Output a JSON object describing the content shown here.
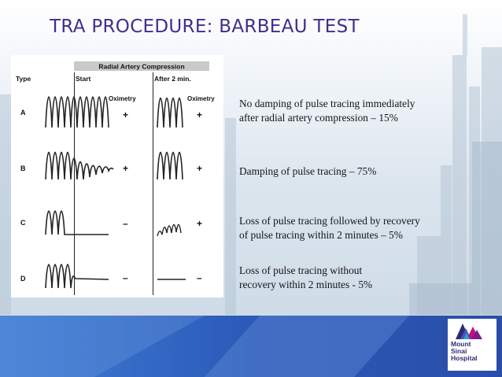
{
  "slide": {
    "title": "TRA PROCEDURE: BARBEAU TEST",
    "colors": {
      "title": "#3f2f8f",
      "band": "#2d5fbf",
      "logo_navy": "#2e2a78",
      "logo_magenta": "#c0117a"
    }
  },
  "figure": {
    "banner": "Radial Artery Compression",
    "type_header": "Type",
    "start_header": "Start",
    "after_header": "After 2 min.",
    "oximetry_label": "Oximetry",
    "rows": [
      {
        "type": "A",
        "start_sign": "+",
        "after_sign": "+"
      },
      {
        "type": "B",
        "start_sign": "+",
        "after_sign": "+"
      },
      {
        "type": "C",
        "start_sign": "–",
        "after_sign": "+"
      },
      {
        "type": "D",
        "start_sign": "–",
        "after_sign": "–"
      }
    ]
  },
  "descriptions": [
    {
      "line1": "No damping of pulse tracing immediately",
      "line2": "after radial artery compression – 15%"
    },
    {
      "line1": "Damping of pulse tracing – 75%",
      "line2": ""
    },
    {
      "line1": "Loss of pulse tracing followed by recovery",
      "line2": "of pulse tracing within 2 minutes – 5%"
    },
    {
      "line1": "Loss of pulse tracing without",
      "line2": "recovery within 2 minutes -  5%"
    }
  ],
  "logo": {
    "line1": "Mount",
    "line2": "Sinai",
    "line3": "Hospital",
    "icon": "mount-sinai-logo-icon"
  }
}
